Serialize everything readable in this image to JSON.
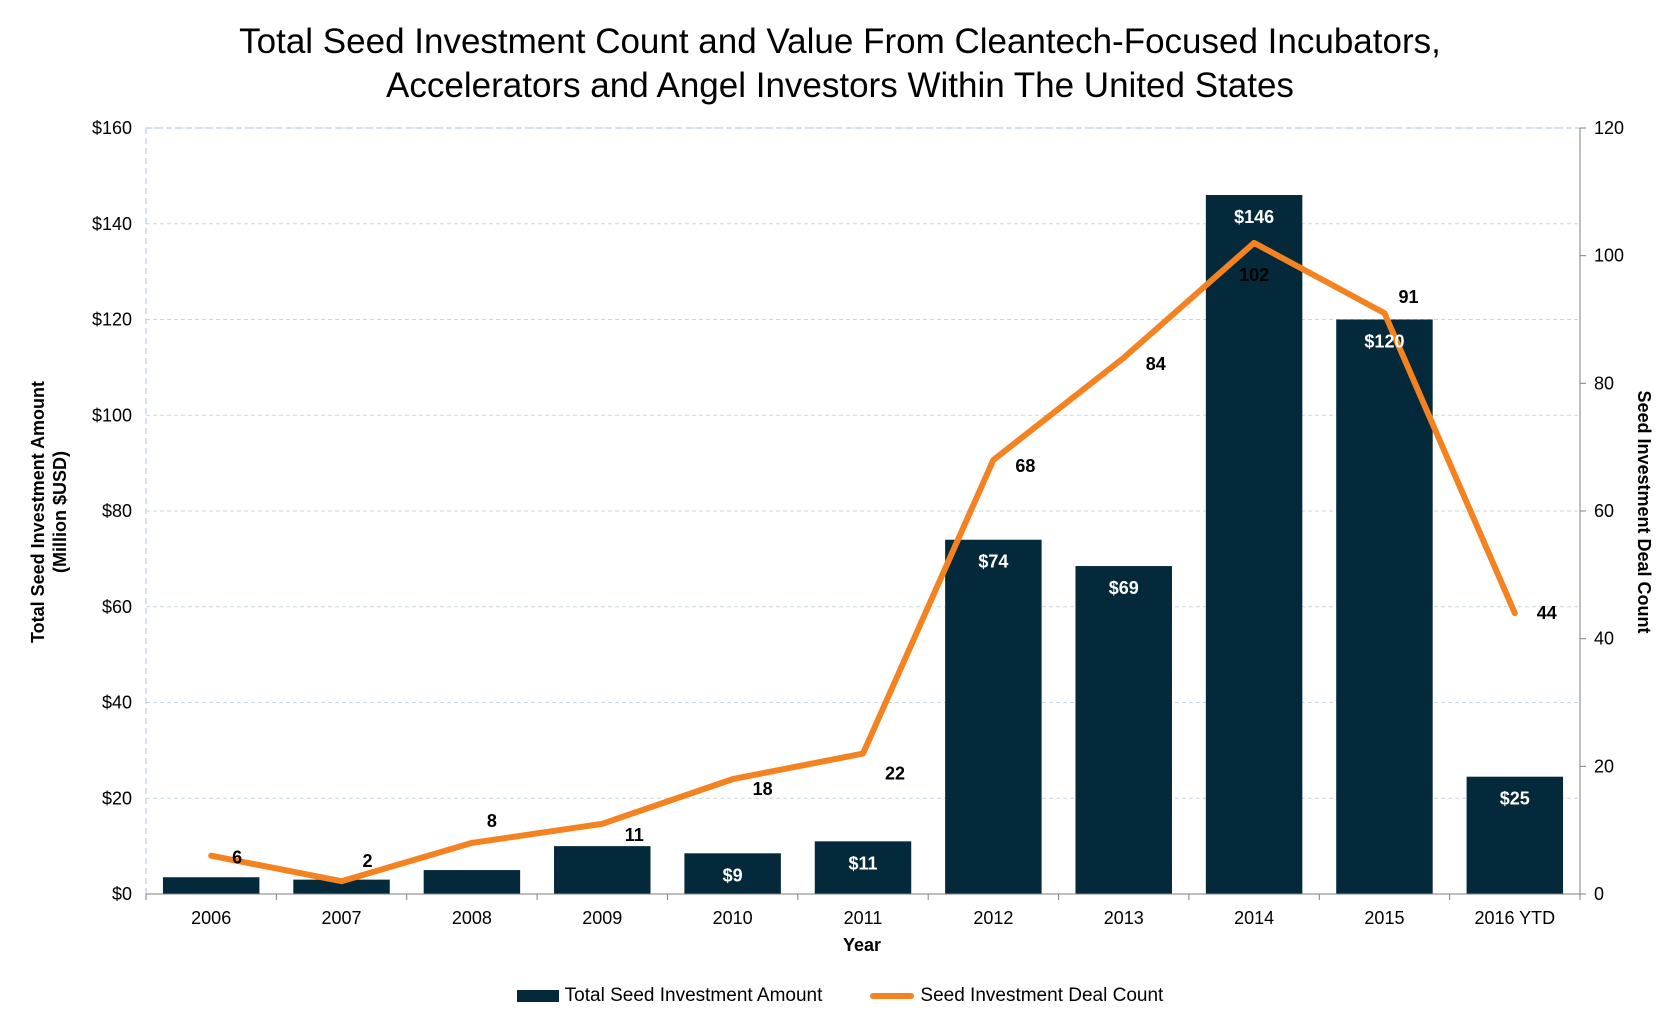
{
  "colors": {
    "bar": "#03293a",
    "line": "#f58220",
    "grid": "#c9d6e3",
    "axis": "#7f7f7f"
  },
  "chart_data": {
    "type": "bar",
    "title_lines": [
      "Total Seed Investment Count and Value From Cleantech-Focused Incubators,",
      "Accelerators and Angel Investors Within The United States"
    ],
    "categories": [
      "2006",
      "2007",
      "2008",
      "2009",
      "2010",
      "2011",
      "2012",
      "2013",
      "2014",
      "2015",
      "2016 YTD"
    ],
    "xlabel": "Year",
    "ylabel_lines": [
      "Total Seed Investment Amount",
      "(Million $USD)"
    ],
    "y2label": "Seed Investment Deal Count",
    "ylim": [
      0,
      160
    ],
    "y2lim": [
      0,
      120
    ],
    "y_ticks": [
      "$0",
      "$20",
      "$40",
      "$60",
      "$80",
      "$100",
      "$120",
      "$140",
      "$160"
    ],
    "y2_ticks": [
      "0",
      "20",
      "40",
      "60",
      "80",
      "100",
      "120"
    ],
    "grid": true,
    "legend_position": "bottom",
    "series": [
      {
        "name": "Total Seed Investment Amount",
        "type": "bar",
        "axis": "left",
        "values": [
          3.5,
          3,
          5,
          10,
          8.5,
          11,
          74,
          68.5,
          146,
          120,
          24.5
        ],
        "labels": [
          "",
          "",
          "",
          "",
          "$9",
          "$11",
          "$74",
          "$69",
          "$146",
          "$120",
          "$25"
        ]
      },
      {
        "name": "Seed Investment Deal Count",
        "type": "line",
        "axis": "right",
        "values": [
          6,
          2,
          8,
          11,
          18,
          22,
          68,
          84,
          102,
          91,
          44
        ],
        "labels": [
          "6",
          "2",
          "8",
          "11",
          "18",
          "22",
          "68",
          "84",
          "102",
          "91",
          "44"
        ]
      }
    ]
  }
}
